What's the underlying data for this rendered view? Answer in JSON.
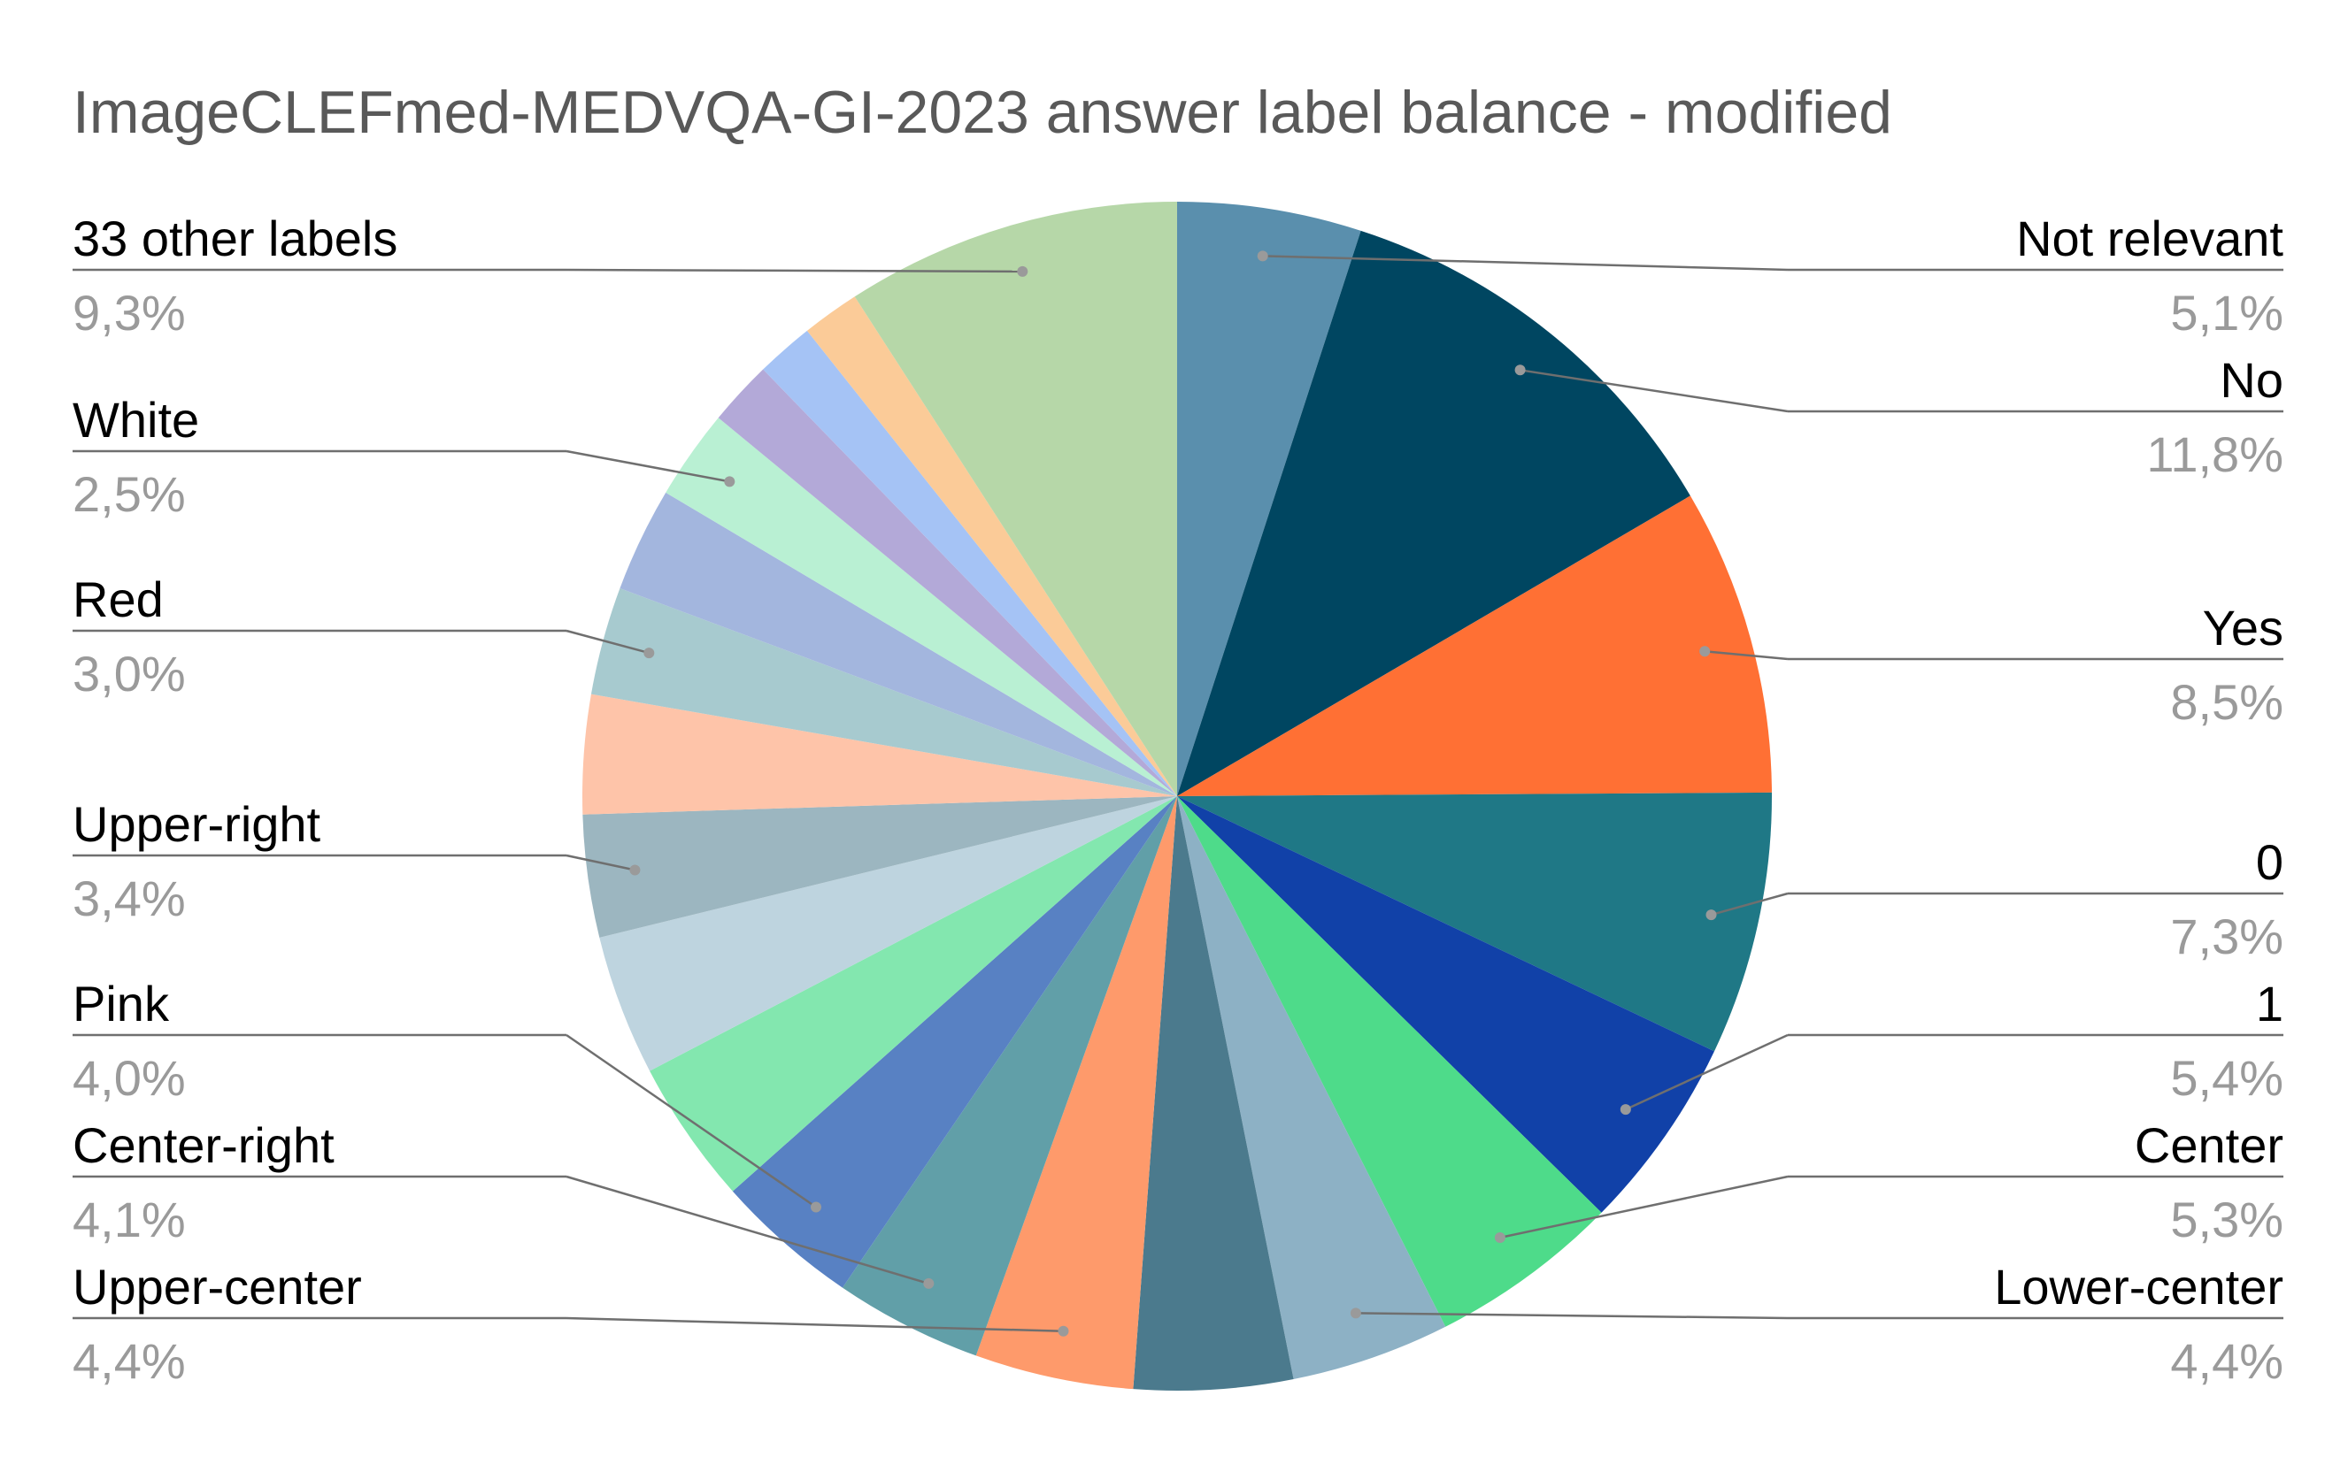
{
  "chart_data": {
    "type": "pie",
    "title": "ImageCLEFmed-MEDVQA-GI-2023 answer label balance - modified",
    "slices": [
      {
        "label": "Not relevant",
        "value": 5.1,
        "display": "5,1%",
        "color": "#5a8fad"
      },
      {
        "label": "No",
        "value": 11.8,
        "display": "11,8%",
        "color": "#004661"
      },
      {
        "label": "Yes",
        "value": 8.5,
        "display": "8,5%",
        "color": "#ff7034"
      },
      {
        "label": "0",
        "value": 7.3,
        "display": "7,3%",
        "color": "#1f7886"
      },
      {
        "label": "1",
        "value": 5.4,
        "display": "5,4%",
        "color": "#1141a8"
      },
      {
        "label": "Center",
        "value": 5.3,
        "display": "5,3%",
        "color": "#4edb8a"
      },
      {
        "label": "Lower-center",
        "value": 4.4,
        "display": "4,4%",
        "color": "#8db1c5"
      },
      {
        "label": "",
        "value": 4.4,
        "display": "",
        "color": "#4b7a8d"
      },
      {
        "label": "Upper-center",
        "value": 4.4,
        "display": "4,4%",
        "color": "#fe9a6b"
      },
      {
        "label": "Center-right",
        "value": 4.1,
        "display": "4,1%",
        "color": "#619fa8"
      },
      {
        "label": "Pink",
        "value": 4.0,
        "display": "4,0%",
        "color": "#5881c3"
      },
      {
        "label": "",
        "value": 4.0,
        "display": "",
        "color": "#83e7af"
      },
      {
        "label": "",
        "value": 3.9,
        "display": "",
        "color": "#bed4df"
      },
      {
        "label": "Upper-right",
        "value": 3.4,
        "display": "3,4%",
        "color": "#9cb6c0"
      },
      {
        "label": "",
        "value": 3.3,
        "display": "",
        "color": "#fec4a9"
      },
      {
        "label": "Red",
        "value": 3.0,
        "display": "3,0%",
        "color": "#a7cacf"
      },
      {
        "label": "",
        "value": 2.9,
        "display": "",
        "color": "#a3b6de"
      },
      {
        "label": "White",
        "value": 2.5,
        "display": "2,5%",
        "color": "#b9f0d3"
      },
      {
        "label": "",
        "value": 1.8,
        "display": "",
        "color": "#b3a9d8"
      },
      {
        "label": "",
        "value": 1.6,
        "display": "",
        "color": "#a5c3f5"
      },
      {
        "label": "",
        "value": 1.6,
        "display": "",
        "color": "#fbcb98"
      },
      {
        "label": "33 other labels",
        "value": 9.3,
        "display": "9,3%",
        "color": "#b6d7a8"
      }
    ],
    "legend": "callout labels on both sides"
  }
}
